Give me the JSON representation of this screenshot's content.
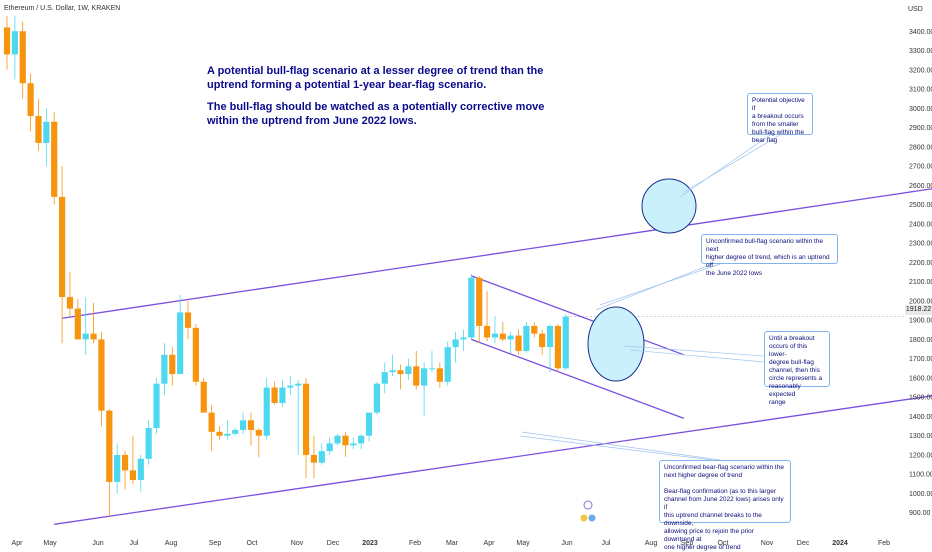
{
  "header": {
    "symbol": "Ethereum / U.S. Dollar, 1W, KRAKEN",
    "currency": "USD"
  },
  "annotation_main": {
    "line1": "A potential bull-flag scenario at a lesser degree of trend than the",
    "line2": "uptrend forming a potential 1-year bear-flag scenario.",
    "line3": "The bull-flag should be watched as a potentially corrective move",
    "line4": "within the uptrend from June 2022 lows."
  },
  "callouts": {
    "objective": "Potential objective if\na breakout occurs\nfrom the smaller\nbull-flag within the\nbear flag",
    "unconfirmed_bull": "Unconfirmed bull-flag scenario within the next\nhigher degree of trend, which is an uptrend off\nthe June 2022 lows",
    "range": "Until a breakout\noccurs of this lower-\ndegree bull-flag\nchannel, then this\ncircle represents a\nreasonably expected\nrange",
    "bear_flag": "Unconfirmed bear-flag scenario within the\nnext higher degree of trend\n\nBear-flag confirmation (as to this larger\nchannel from June 2022 lows) arises only if\nthis uptrend channel breaks to the downside,\nallowing price to rejoin the prior downtrend at\none higher degree of trend"
  },
  "price_badge": "1918.22",
  "colors": {
    "up": "#4dd8f0",
    "down": "#f7940d",
    "channel": "#7a4fe0",
    "text": "#0a0a8c",
    "circle_fill": "#c9f0fb",
    "circle_stroke": "#1a2f8a"
  },
  "chart_data": {
    "type": "candlestick",
    "y_axis": {
      "min": 800,
      "max": 3500,
      "ticks": [
        900,
        1000,
        1100,
        1200,
        1300,
        1400,
        1500,
        1600,
        1700,
        1800,
        1900,
        2000,
        2100,
        2200,
        2300,
        2400,
        2500,
        2600,
        2700,
        2800,
        2900,
        3000,
        3100,
        3200,
        3300,
        3400
      ],
      "label": "USD"
    },
    "x_axis": {
      "labels": [
        "Apr",
        "May",
        "Jun",
        "Jul",
        "Aug",
        "Sep",
        "Oct",
        "Nov",
        "Dec",
        "2023",
        "Feb",
        "Mar",
        "Apr",
        "May",
        "Jun",
        "Jul",
        "Aug",
        "Sep",
        "Oct",
        "Nov",
        "Dec",
        "2024",
        "Feb"
      ]
    },
    "last_price": 1918.22,
    "candles": [
      {
        "o": 3420,
        "c": 3280,
        "h": 3480,
        "l": 3200
      },
      {
        "o": 3280,
        "c": 3400,
        "h": 3480,
        "l": 3150
      },
      {
        "o": 3400,
        "c": 3130,
        "h": 3450,
        "l": 3050
      },
      {
        "o": 3130,
        "c": 2960,
        "h": 3180,
        "l": 2880
      },
      {
        "o": 2960,
        "c": 2820,
        "h": 3050,
        "l": 2780
      },
      {
        "o": 2820,
        "c": 2930,
        "h": 3000,
        "l": 2700
      },
      {
        "o": 2930,
        "c": 2540,
        "h": 2980,
        "l": 2500
      },
      {
        "o": 2540,
        "c": 2020,
        "h": 2700,
        "l": 1780
      },
      {
        "o": 2020,
        "c": 1960,
        "h": 2150,
        "l": 1920
      },
      {
        "o": 1960,
        "c": 1800,
        "h": 2010,
        "l": 1800
      },
      {
        "o": 1800,
        "c": 1830,
        "h": 2020,
        "l": 1720
      },
      {
        "o": 1830,
        "c": 1800,
        "h": 1990,
        "l": 1780
      },
      {
        "o": 1800,
        "c": 1430,
        "h": 1840,
        "l": 1350
      },
      {
        "o": 1430,
        "c": 1060,
        "h": 1440,
        "l": 880
      },
      {
        "o": 1060,
        "c": 1200,
        "h": 1260,
        "l": 1000
      },
      {
        "o": 1200,
        "c": 1120,
        "h": 1220,
        "l": 1020
      },
      {
        "o": 1120,
        "c": 1070,
        "h": 1300,
        "l": 1050
      },
      {
        "o": 1070,
        "c": 1180,
        "h": 1200,
        "l": 1010
      },
      {
        "o": 1180,
        "c": 1340,
        "h": 1380,
        "l": 1150
      },
      {
        "o": 1340,
        "c": 1570,
        "h": 1600,
        "l": 1310
      },
      {
        "o": 1570,
        "c": 1720,
        "h": 1780,
        "l": 1510
      },
      {
        "o": 1720,
        "c": 1620,
        "h": 1760,
        "l": 1560
      },
      {
        "o": 1620,
        "c": 1940,
        "h": 2030,
        "l": 1620
      },
      {
        "o": 1940,
        "c": 1860,
        "h": 2000,
        "l": 1800
      },
      {
        "o": 1860,
        "c": 1580,
        "h": 1880,
        "l": 1560
      },
      {
        "o": 1580,
        "c": 1420,
        "h": 1600,
        "l": 1420
      },
      {
        "o": 1420,
        "c": 1320,
        "h": 1460,
        "l": 1220
      },
      {
        "o": 1320,
        "c": 1300,
        "h": 1350,
        "l": 1280
      },
      {
        "o": 1300,
        "c": 1310,
        "h": 1380,
        "l": 1280
      },
      {
        "o": 1310,
        "c": 1330,
        "h": 1340,
        "l": 1300
      },
      {
        "o": 1330,
        "c": 1380,
        "h": 1420,
        "l": 1310
      },
      {
        "o": 1380,
        "c": 1330,
        "h": 1420,
        "l": 1250
      },
      {
        "o": 1330,
        "c": 1300,
        "h": 1340,
        "l": 1190
      },
      {
        "o": 1300,
        "c": 1550,
        "h": 1600,
        "l": 1280
      },
      {
        "o": 1550,
        "c": 1470,
        "h": 1580,
        "l": 1460
      },
      {
        "o": 1470,
        "c": 1550,
        "h": 1590,
        "l": 1450
      },
      {
        "o": 1550,
        "c": 1560,
        "h": 1610,
        "l": 1510
      },
      {
        "o": 1560,
        "c": 1570,
        "h": 1590,
        "l": 1200
      },
      {
        "o": 1570,
        "c": 1200,
        "h": 1600,
        "l": 1080
      },
      {
        "o": 1200,
        "c": 1160,
        "h": 1300,
        "l": 1080
      },
      {
        "o": 1160,
        "c": 1220,
        "h": 1260,
        "l": 1150
      },
      {
        "o": 1220,
        "c": 1260,
        "h": 1290,
        "l": 1200
      },
      {
        "o": 1260,
        "c": 1300,
        "h": 1310,
        "l": 1250
      },
      {
        "o": 1300,
        "c": 1250,
        "h": 1320,
        "l": 1190
      },
      {
        "o": 1250,
        "c": 1260,
        "h": 1290,
        "l": 1230
      },
      {
        "o": 1260,
        "c": 1300,
        "h": 1310,
        "l": 1230
      },
      {
        "o": 1300,
        "c": 1420,
        "h": 1420,
        "l": 1270
      },
      {
        "o": 1420,
        "c": 1570,
        "h": 1580,
        "l": 1410
      },
      {
        "o": 1570,
        "c": 1630,
        "h": 1680,
        "l": 1520
      },
      {
        "o": 1630,
        "c": 1640,
        "h": 1720,
        "l": 1610
      },
      {
        "o": 1640,
        "c": 1620,
        "h": 1670,
        "l": 1540
      },
      {
        "o": 1620,
        "c": 1660,
        "h": 1700,
        "l": 1590
      },
      {
        "o": 1660,
        "c": 1560,
        "h": 1740,
        "l": 1540
      },
      {
        "o": 1560,
        "c": 1650,
        "h": 1680,
        "l": 1400
      },
      {
        "o": 1650,
        "c": 1650,
        "h": 1740,
        "l": 1630
      },
      {
        "o": 1650,
        "c": 1580,
        "h": 1680,
        "l": 1550
      },
      {
        "o": 1580,
        "c": 1760,
        "h": 1790,
        "l": 1560
      },
      {
        "o": 1760,
        "c": 1800,
        "h": 1840,
        "l": 1680
      },
      {
        "o": 1800,
        "c": 1810,
        "h": 1850,
        "l": 1740
      },
      {
        "o": 1810,
        "c": 2120,
        "h": 2140,
        "l": 1800
      },
      {
        "o": 2120,
        "c": 1870,
        "h": 2130,
        "l": 1780
      },
      {
        "o": 1870,
        "c": 1810,
        "h": 2050,
        "l": 1790
      },
      {
        "o": 1810,
        "c": 1830,
        "h": 1920,
        "l": 1780
      },
      {
        "o": 1830,
        "c": 1800,
        "h": 1890,
        "l": 1790
      },
      {
        "o": 1800,
        "c": 1820,
        "h": 1840,
        "l": 1730
      },
      {
        "o": 1820,
        "c": 1740,
        "h": 1850,
        "l": 1720
      },
      {
        "o": 1740,
        "c": 1870,
        "h": 1890,
        "l": 1730
      },
      {
        "o": 1870,
        "c": 1830,
        "h": 1890,
        "l": 1810
      },
      {
        "o": 1830,
        "c": 1760,
        "h": 1850,
        "l": 1720
      },
      {
        "o": 1760,
        "c": 1870,
        "h": 1880,
        "l": 1630
      },
      {
        "o": 1870,
        "c": 1650,
        "h": 1880,
        "l": 1630
      },
      {
        "o": 1650,
        "c": 1918,
        "h": 1930,
        "l": 1640
      }
    ],
    "trendlines": [
      {
        "name": "upper-channel",
        "p1": {
          "i": 7,
          "y": 1910
        },
        "p2": {
          "i": 118,
          "y": 2585
        }
      },
      {
        "name": "lower-channel",
        "p1": {
          "i": 6,
          "y": 840
        },
        "p2": {
          "i": 118,
          "y": 1510
        }
      },
      {
        "name": "flag-upper",
        "p1": {
          "i": 59,
          "y": 2130
        },
        "p2": {
          "i": 86,
          "y": 1720
        }
      },
      {
        "name": "flag-lower",
        "p1": {
          "i": 59,
          "y": 1800
        },
        "p2": {
          "i": 86,
          "y": 1390
        }
      }
    ]
  }
}
